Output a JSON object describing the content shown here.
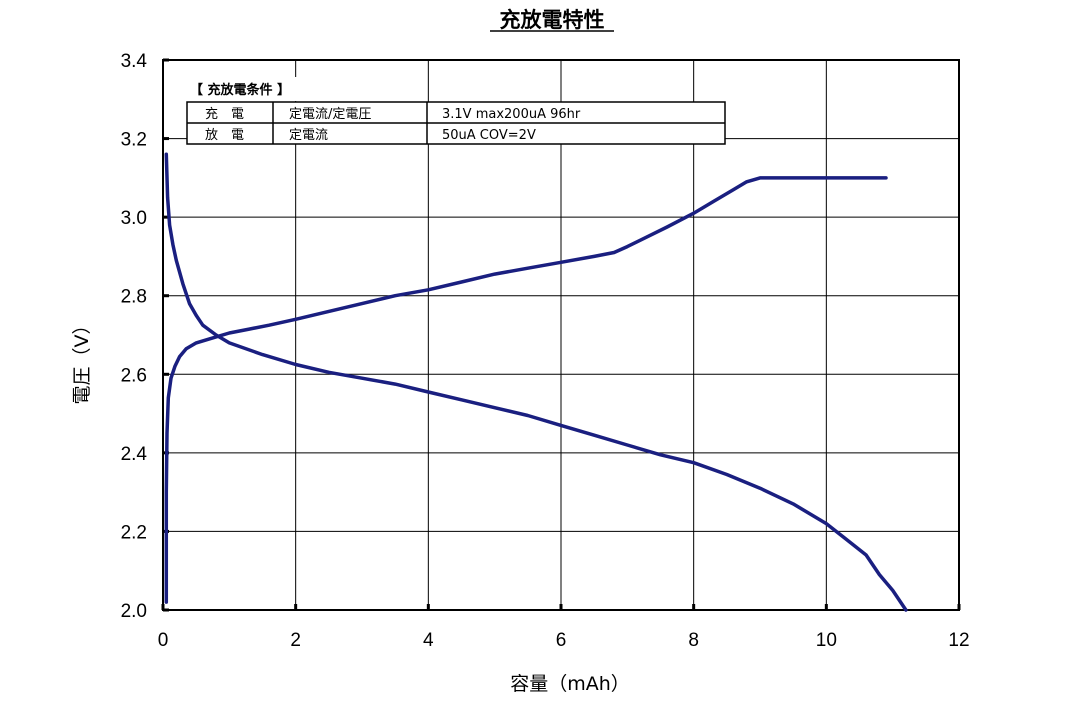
{
  "chart_data": {
    "type": "line",
    "title": "充放電特性",
    "xlabel": "容量（mAh）",
    "ylabel": "電圧（V）",
    "xlim": [
      0,
      12
    ],
    "ylim": [
      2.0,
      3.4
    ],
    "xticks": [
      "0",
      "2",
      "4",
      "6",
      "8",
      "10",
      "12"
    ],
    "yticks": [
      "2.0",
      "2.2",
      "2.4",
      "2.6",
      "2.8",
      "3.0",
      "3.2",
      "3.4"
    ],
    "grid": true,
    "line_color": "#1a1f80",
    "series": [
      {
        "x": [
          0.05,
          0.05,
          0.06,
          0.08,
          0.12,
          0.18,
          0.25,
          0.35,
          0.5,
          0.7,
          1.0,
          1.3,
          1.6,
          2.0,
          2.5,
          3.0,
          3.5,
          4.0,
          4.5,
          5.0,
          5.5,
          6.0,
          6.5,
          6.8,
          7.0,
          7.3,
          7.6,
          8.0,
          8.3,
          8.6,
          8.8,
          9.0,
          9.2,
          9.5,
          10.0,
          10.5,
          10.9
        ],
        "y": [
          2.02,
          2.3,
          2.45,
          2.54,
          2.59,
          2.62,
          2.645,
          2.665,
          2.68,
          2.69,
          2.705,
          2.715,
          2.725,
          2.74,
          2.76,
          2.78,
          2.8,
          2.815,
          2.835,
          2.855,
          2.87,
          2.885,
          2.9,
          2.91,
          2.925,
          2.95,
          2.975,
          3.01,
          3.04,
          3.07,
          3.09,
          3.1,
          3.1,
          3.1,
          3.1,
          3.1,
          3.1
        ]
      },
      {
        "x": [
          0.05,
          0.07,
          0.1,
          0.15,
          0.2,
          0.3,
          0.4,
          0.5,
          0.6,
          0.8,
          1.0,
          1.5,
          2.0,
          2.5,
          3.0,
          3.5,
          4.0,
          4.5,
          5.0,
          5.5,
          6.0,
          6.5,
          7.0,
          7.5,
          8.0,
          8.5,
          9.0,
          9.5,
          10.0,
          10.3,
          10.6,
          10.8,
          11.0,
          11.2
        ],
        "y": [
          3.16,
          3.05,
          2.98,
          2.93,
          2.89,
          2.83,
          2.78,
          2.75,
          2.725,
          2.7,
          2.68,
          2.65,
          2.625,
          2.605,
          2.59,
          2.575,
          2.555,
          2.535,
          2.515,
          2.495,
          2.47,
          2.445,
          2.42,
          2.395,
          2.375,
          2.345,
          2.31,
          2.27,
          2.22,
          2.18,
          2.14,
          2.09,
          2.05,
          2.0
        ]
      }
    ]
  },
  "conditions": {
    "header": "【 充放電条件 】",
    "rows": [
      {
        "mode": "充　電",
        "method": "定電流/定電圧",
        "detail": "3.1V  max200uA  96hr"
      },
      {
        "mode": "放　電",
        "method": "定電流",
        "detail": "50uA  COV=2V"
      }
    ]
  }
}
